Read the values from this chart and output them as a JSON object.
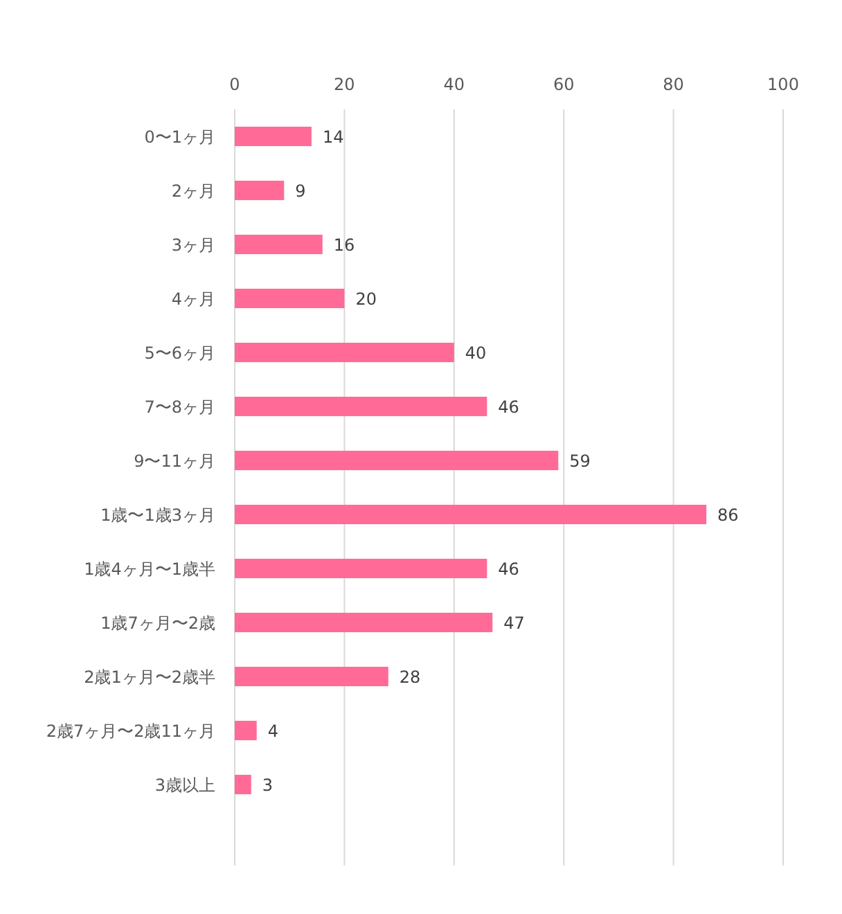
{
  "chart_data": {
    "type": "bar",
    "orientation": "horizontal",
    "categories": [
      "0〜1ヶ月",
      "2ヶ月",
      "3ヶ月",
      "4ヶ月",
      "5〜6ヶ月",
      "7〜8ヶ月",
      "9〜11ヶ月",
      "1歳〜1歳3ヶ月",
      "1歳4ヶ月〜1歳半",
      "1歳7ヶ月〜2歳",
      "2歳1ヶ月〜2歳半",
      "2歳7ヶ月〜2歳11ヶ月",
      "3歳以上",
      null
    ],
    "values": [
      14,
      9,
      16,
      20,
      40,
      46,
      59,
      86,
      46,
      47,
      28,
      4,
      3,
      null
    ],
    "color": "#ff6b96",
    "xlim": [
      0,
      100
    ],
    "xticks": [
      0,
      20,
      40,
      60,
      80,
      100
    ],
    "grid": "x",
    "data_labels": true
  }
}
